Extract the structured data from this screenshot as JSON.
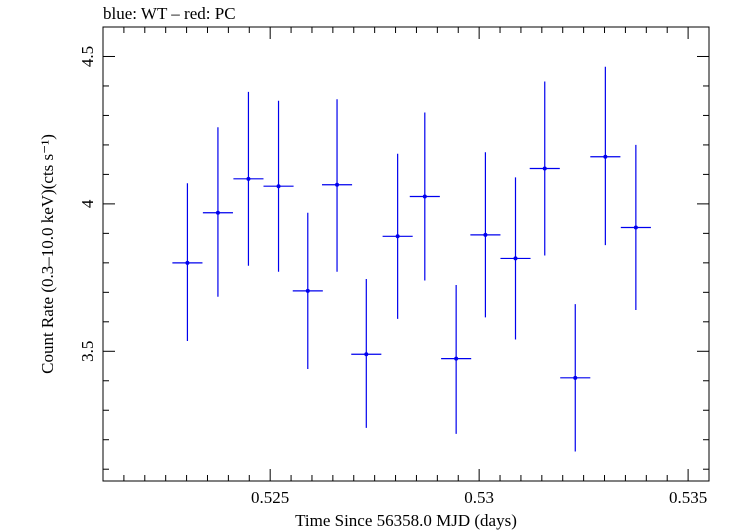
{
  "header": {
    "caption": "blue: WT – red: PC"
  },
  "chart_data": {
    "type": "scatter",
    "title": "",
    "xlabel": "Time Since 56358.0 MJD (days)",
    "ylabel": "Count Rate (0.3–10.0 keV)(cts s⁻¹)",
    "xlim": [
      0.521,
      0.5355
    ],
    "ylim": [
      3.06,
      4.6
    ],
    "x_ticks": [
      0.525,
      0.53,
      0.535
    ],
    "x_tick_labels": [
      "0.525",
      "0.53",
      "0.535"
    ],
    "y_ticks": [
      3.5,
      4.0,
      4.5
    ],
    "y_tick_labels": [
      "3.5",
      "4",
      "4.5"
    ],
    "grid": false,
    "legend": "none",
    "colors": {
      "WT": "#0000ee",
      "axes": "#000000"
    },
    "series": [
      {
        "name": "WT",
        "points": [
          {
            "x": 0.52302,
            "xerr": 0.00036,
            "y": 3.8,
            "yerr_lo": 0.265,
            "yerr_hi": 0.27
          },
          {
            "x": 0.52375,
            "xerr": 0.00036,
            "y": 3.97,
            "yerr_lo": 0.285,
            "yerr_hi": 0.29
          },
          {
            "x": 0.52448,
            "xerr": 0.00036,
            "y": 4.085,
            "yerr_lo": 0.295,
            "yerr_hi": 0.295
          },
          {
            "x": 0.5252,
            "xerr": 0.00036,
            "y": 4.06,
            "yerr_lo": 0.29,
            "yerr_hi": 0.29
          },
          {
            "x": 0.5259,
            "xerr": 0.00036,
            "y": 3.705,
            "yerr_lo": 0.265,
            "yerr_hi": 0.265
          },
          {
            "x": 0.5266,
            "xerr": 0.00036,
            "y": 4.065,
            "yerr_lo": 0.295,
            "yerr_hi": 0.29
          },
          {
            "x": 0.5273,
            "xerr": 0.00036,
            "y": 3.49,
            "yerr_lo": 0.25,
            "yerr_hi": 0.255
          },
          {
            "x": 0.52805,
            "xerr": 0.00036,
            "y": 3.89,
            "yerr_lo": 0.28,
            "yerr_hi": 0.28
          },
          {
            "x": 0.5287,
            "xerr": 0.00036,
            "y": 4.025,
            "yerr_lo": 0.285,
            "yerr_hi": 0.285
          },
          {
            "x": 0.52945,
            "xerr": 0.00036,
            "y": 3.475,
            "yerr_lo": 0.255,
            "yerr_hi": 0.25
          },
          {
            "x": 0.53015,
            "xerr": 0.00036,
            "y": 3.895,
            "yerr_lo": 0.28,
            "yerr_hi": 0.28
          },
          {
            "x": 0.53087,
            "xerr": 0.00036,
            "y": 3.815,
            "yerr_lo": 0.275,
            "yerr_hi": 0.275
          },
          {
            "x": 0.53157,
            "xerr": 0.00036,
            "y": 4.12,
            "yerr_lo": 0.295,
            "yerr_hi": 0.295
          },
          {
            "x": 0.5323,
            "xerr": 0.00036,
            "y": 3.41,
            "yerr_lo": 0.25,
            "yerr_hi": 0.25
          },
          {
            "x": 0.53302,
            "xerr": 0.00036,
            "y": 4.16,
            "yerr_lo": 0.3,
            "yerr_hi": 0.305
          },
          {
            "x": 0.53375,
            "xerr": 0.00036,
            "y": 3.92,
            "yerr_lo": 0.28,
            "yerr_hi": 0.28
          }
        ]
      }
    ]
  }
}
